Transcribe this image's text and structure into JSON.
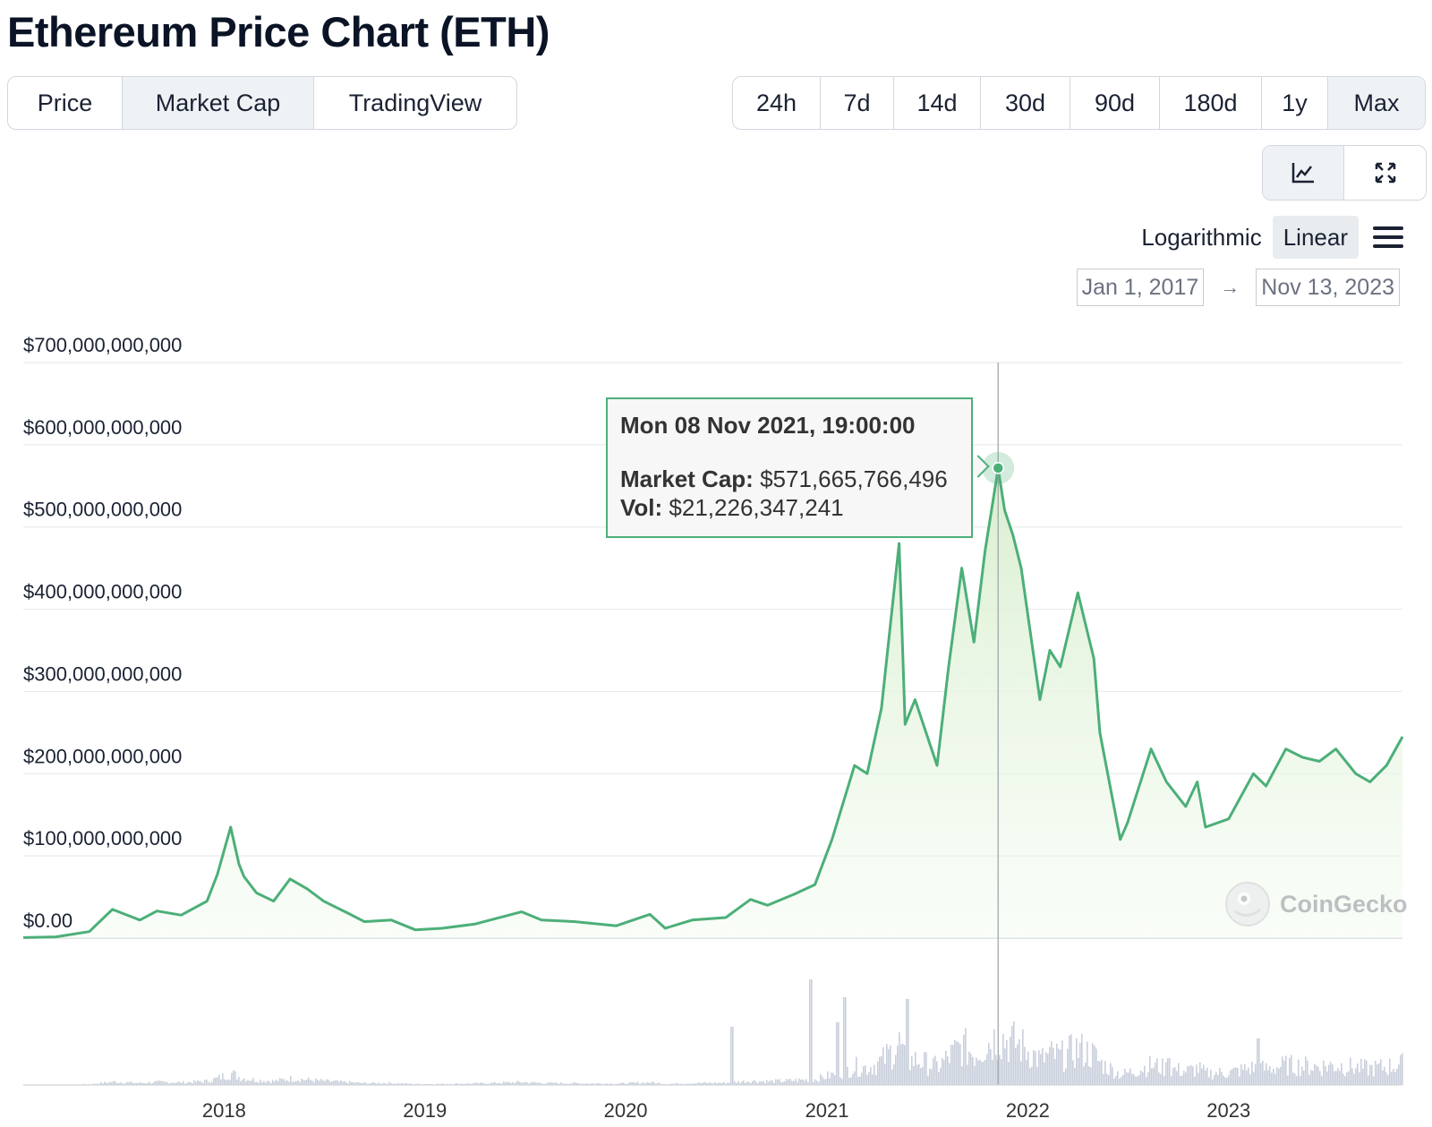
{
  "title": "Ethereum Price Chart (ETH)",
  "type_tabs": [
    {
      "label": "Price",
      "active": false
    },
    {
      "label": "Market Cap",
      "active": true
    },
    {
      "label": "TradingView",
      "active": false
    }
  ],
  "range_tabs": [
    {
      "label": "24h",
      "active": false
    },
    {
      "label": "7d",
      "active": false
    },
    {
      "label": "14d",
      "active": false
    },
    {
      "label": "30d",
      "active": false
    },
    {
      "label": "90d",
      "active": false
    },
    {
      "label": "180d",
      "active": false
    },
    {
      "label": "1y",
      "active": false
    },
    {
      "label": "Max",
      "active": true
    }
  ],
  "view_tabs": [
    {
      "icon": "line-chart-icon",
      "active": true
    },
    {
      "icon": "expand-icon",
      "active": false
    }
  ],
  "scale": {
    "logarithmic": "Logarithmic",
    "linear": "Linear",
    "active": "Linear"
  },
  "date_range": {
    "from": "Jan 1, 2017",
    "to": "Nov 13, 2023",
    "arrow": "→"
  },
  "tooltip": {
    "date": "Mon 08 Nov 2021, 19:00:00",
    "market_cap_label": "Market Cap:",
    "market_cap_value": "$571,665,766,496",
    "vol_label": "Vol:",
    "vol_value": "$21,226,347,241"
  },
  "watermark": "CoinGecko",
  "colors": {
    "line": "#4caf78",
    "area_top": "#dff0d8",
    "volume": "#c9cfdb",
    "grid": "#e6e8eb",
    "accent_border": "#4caf78"
  },
  "chart_data": {
    "type": "area",
    "series": [
      {
        "name": "Market Cap",
        "x": [
          "2017-01-01",
          "2017-03-01",
          "2017-05-01",
          "2017-06-12",
          "2017-08-01",
          "2017-09-01",
          "2017-10-15",
          "2017-12-01",
          "2017-12-20",
          "2018-01-13",
          "2018-01-28",
          "2018-02-06",
          "2018-03-01",
          "2018-04-01",
          "2018-05-01",
          "2018-06-01",
          "2018-07-01",
          "2018-08-15",
          "2018-09-13",
          "2018-11-01",
          "2018-12-15",
          "2019-02-01",
          "2019-04-01",
          "2019-06-26",
          "2019-08-01",
          "2019-10-01",
          "2019-12-15",
          "2020-02-14",
          "2020-03-13",
          "2020-05-01",
          "2020-07-01",
          "2020-08-15",
          "2020-09-15",
          "2020-11-01",
          "2020-12-10",
          "2021-01-10",
          "2021-02-20",
          "2021-03-15",
          "2021-04-10",
          "2021-05-12",
          "2021-05-23",
          "2021-06-10",
          "2021-07-20",
          "2021-08-10",
          "2021-09-03",
          "2021-09-25",
          "2021-10-15",
          "2021-11-08",
          "2021-11-20",
          "2021-12-05",
          "2021-12-20",
          "2022-01-23",
          "2022-02-10",
          "2022-03-01",
          "2022-04-02",
          "2022-05-01",
          "2022-05-12",
          "2022-06-18",
          "2022-07-01",
          "2022-08-13",
          "2022-09-10",
          "2022-10-15",
          "2022-11-05",
          "2022-11-20",
          "2023-01-01",
          "2023-02-15",
          "2023-03-10",
          "2023-04-15",
          "2023-05-15",
          "2023-06-15",
          "2023-07-15",
          "2023-08-20",
          "2023-09-15",
          "2023-10-15",
          "2023-11-13"
        ],
        "values": [
          0.7,
          1.5,
          8,
          35,
          22,
          33,
          28,
          45,
          78,
          135,
          90,
          75,
          55,
          45,
          72,
          60,
          45,
          30,
          20,
          22,
          10,
          12,
          17,
          32,
          22,
          20,
          15,
          29,
          12,
          22,
          25,
          47,
          40,
          53,
          65,
          120,
          210,
          200,
          280,
          480,
          260,
          290,
          210,
          330,
          450,
          360,
          470,
          571,
          520,
          490,
          450,
          290,
          350,
          330,
          420,
          340,
          250,
          120,
          140,
          230,
          190,
          160,
          190,
          135,
          145,
          200,
          185,
          230,
          220,
          215,
          230,
          200,
          190,
          210,
          245
        ]
      }
    ],
    "volume_note": "Volume bars shown beneath price area (unlabelled axis)",
    "xlabel": "",
    "ylabel": "",
    "ylim": [
      0,
      700000000000
    ],
    "y_unit_scale": 1000000000,
    "yticks": [
      "$0.00",
      "$100,000,000,000",
      "$200,000,000,000",
      "$300,000,000,000",
      "$400,000,000,000",
      "$500,000,000,000",
      "$600,000,000,000",
      "$700,000,000,000"
    ],
    "xticks": [
      "2018",
      "2019",
      "2020",
      "2021",
      "2022",
      "2023"
    ],
    "xlim": [
      "2017-01-01",
      "2023-11-13"
    ],
    "grid": true,
    "highlight": {
      "x": "2021-11-08",
      "value": 571.665766496
    }
  }
}
